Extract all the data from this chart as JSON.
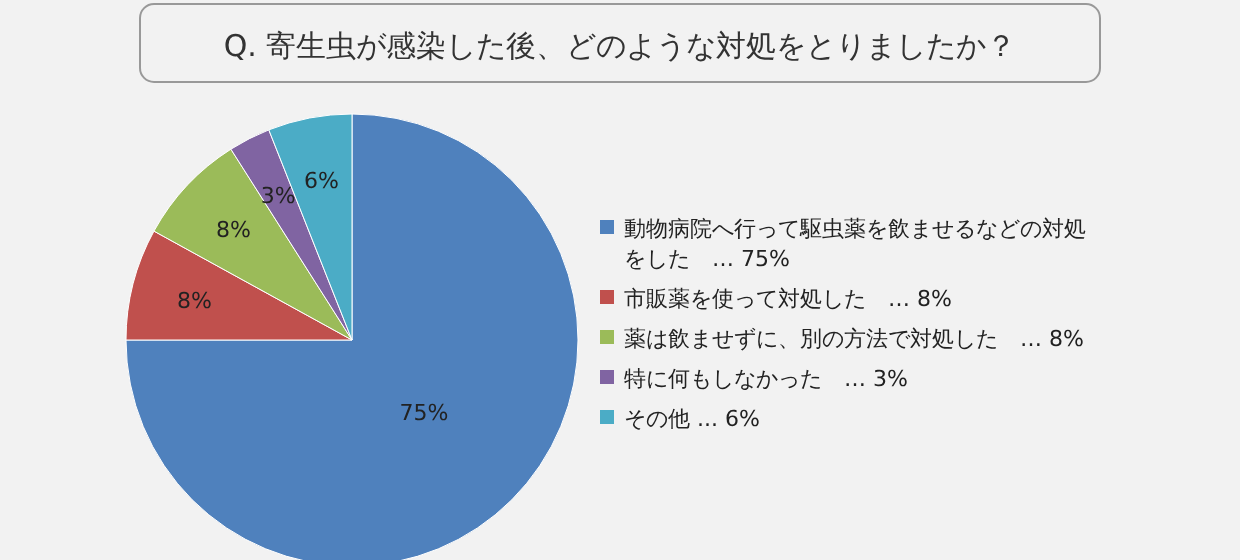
{
  "chart_data": {
    "type": "pie",
    "title": "Q. 寄生虫が感染した後、どのような対処をとりましたか？",
    "categories": [
      "動物病院へ行って駆虫薬を飲ませるなどの対処をした　… 75%",
      "市販薬を使って対処した　… 8%",
      "薬は飲ませずに、別の方法で対処した　… 8%",
      "特に何もしなかった　… 3%",
      "その他 ... 6%"
    ],
    "values": [
      75,
      8,
      8,
      3,
      6
    ],
    "value_labels": [
      "75%",
      "8%",
      "8%",
      "3%",
      "6%"
    ],
    "colors": [
      "#4f81bd",
      "#c0504d",
      "#9bbb59",
      "#8064a2",
      "#4bacc6"
    ],
    "legend": "right"
  }
}
